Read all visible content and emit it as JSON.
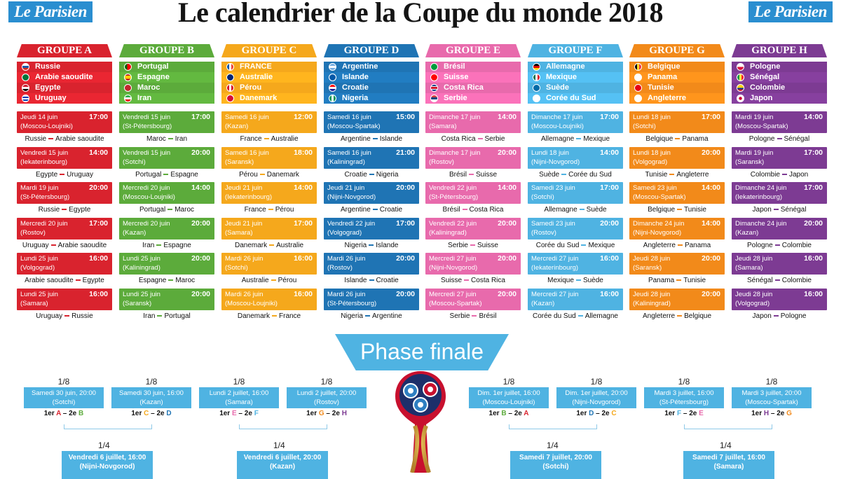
{
  "title": "Le calendrier de la Coupe du monde 2018",
  "logo_text": "Le Parisien",
  "colors": {
    "A": "#d9232e",
    "B": "#5cab3b",
    "C": "#f5a81c",
    "D": "#1f74b4",
    "E": "#e86aac",
    "F": "#4fb3e2",
    "G": "#f28a1a",
    "H": "#7d3b93",
    "logo": "#2a8ed0",
    "final": "#4fb3e2"
  },
  "groups": [
    {
      "name": "GROUPE A",
      "key": "A",
      "teams": [
        {
          "name": "Russie",
          "flag": "russia-flag-icon"
        },
        {
          "name": "Arabie saoudite",
          "flag": "saudi-arabia-flag-icon"
        },
        {
          "name": "Egypte",
          "flag": "egypt-flag-icon"
        },
        {
          "name": "Uruguay",
          "flag": "uruguay-flag-icon"
        }
      ],
      "matches": [
        {
          "date": "Jeudi 14 juin",
          "time": "17:00",
          "city": "(Moscou-Loujniki)",
          "teams": [
            "Russie",
            "Arabie saoudite"
          ]
        },
        {
          "date": "Vendredi 15 juin",
          "time": "14:00",
          "city": "(Iekaterinbourg)",
          "teams": [
            "Egypte",
            "Uruguay"
          ]
        },
        {
          "date": "Mardi 19 juin",
          "time": "20:00",
          "city": "(St-Pétersbourg)",
          "teams": [
            "Russie",
            "Egypte"
          ]
        },
        {
          "date": "Mercredi 20 juin",
          "time": "17:00",
          "city": "(Rostov)",
          "teams": [
            "Uruguay",
            "Arabie saoudite"
          ]
        },
        {
          "date": "Lundi 25 juin",
          "time": "16:00",
          "city": "(Volgograd)",
          "teams": [
            "Arabie saoudite",
            "Egypte"
          ]
        },
        {
          "date": "Lundi 25 juin",
          "time": "16:00",
          "city": "(Samara)",
          "teams": [
            "Uruguay",
            "Russie"
          ]
        }
      ]
    },
    {
      "name": "GROUPE B",
      "key": "B",
      "teams": [
        {
          "name": "Portugal",
          "flag": "portugal-flag-icon"
        },
        {
          "name": "Espagne",
          "flag": "spain-flag-icon"
        },
        {
          "name": "Maroc",
          "flag": "morocco-flag-icon"
        },
        {
          "name": "Iran",
          "flag": "iran-flag-icon"
        }
      ],
      "matches": [
        {
          "date": "Vendredi 15 juin",
          "time": "17:00",
          "city": "(St-Pétersbourg)",
          "teams": [
            "Maroc",
            "Iran"
          ]
        },
        {
          "date": "Vendredi 15 juin",
          "time": "20:00",
          "city": "(Sotchi)",
          "teams": [
            "Portugal",
            "Espagne"
          ]
        },
        {
          "date": "Mercredi 20 juin",
          "time": "14:00",
          "city": "(Moscou-Loujniki)",
          "teams": [
            "Portugal",
            "Maroc"
          ]
        },
        {
          "date": "Mercredi 20 juin",
          "time": "20:00",
          "city": "(Kazan)",
          "teams": [
            "Iran",
            "Espagne"
          ]
        },
        {
          "date": "Lundi 25 juin",
          "time": "20:00",
          "city": "(Kaliningrad)",
          "teams": [
            "Espagne",
            "Maroc"
          ]
        },
        {
          "date": "Lundi 25 juin",
          "time": "20:00",
          "city": "(Saransk)",
          "teams": [
            "Iran",
            "Portugal"
          ]
        }
      ]
    },
    {
      "name": "GROUPE C",
      "key": "C",
      "teams": [
        {
          "name": "FRANCE",
          "flag": "france-flag-icon"
        },
        {
          "name": "Australie",
          "flag": "australia-flag-icon"
        },
        {
          "name": "Pérou",
          "flag": "peru-flag-icon"
        },
        {
          "name": "Danemark",
          "flag": "denmark-flag-icon"
        }
      ],
      "matches": [
        {
          "date": "Samedi 16 juin",
          "time": "12:00",
          "city": "(Kazan)",
          "teams": [
            "France",
            "Australie"
          ]
        },
        {
          "date": "Samedi 16 juin",
          "time": "18:00",
          "city": "(Saransk)",
          "teams": [
            "Pérou",
            "Danemark"
          ]
        },
        {
          "date": "Jeudi 21 juin",
          "time": "14:00",
          "city": "(Iekaterinbourg)",
          "teams": [
            "France",
            "Pérou"
          ]
        },
        {
          "date": "Jeudi 21 juin",
          "time": "17:00",
          "city": "(Samara)",
          "teams": [
            "Danemark",
            "Australie"
          ]
        },
        {
          "date": "Mardi 26 juin",
          "time": "16:00",
          "city": "(Sotchi)",
          "teams": [
            "Australie",
            "Pérou"
          ]
        },
        {
          "date": "Mardi 26 juin",
          "time": "16:00",
          "city": "(Moscou-Loujniki)",
          "teams": [
            "Danemark",
            "France"
          ]
        }
      ]
    },
    {
      "name": "GROUPE D",
      "key": "D",
      "teams": [
        {
          "name": "Argentine",
          "flag": "argentina-flag-icon"
        },
        {
          "name": "Islande",
          "flag": "iceland-flag-icon"
        },
        {
          "name": "Croatie",
          "flag": "croatia-flag-icon"
        },
        {
          "name": "Nigeria",
          "flag": "nigeria-flag-icon"
        }
      ],
      "matches": [
        {
          "date": "Samedi 16 juin",
          "time": "15:00",
          "city": "(Moscou-Spartak)",
          "teams": [
            "Argentine",
            "Islande"
          ]
        },
        {
          "date": "Samedi 16 juin",
          "time": "21:00",
          "city": "(Kaliningrad)",
          "teams": [
            "Croatie",
            "Nigeria"
          ]
        },
        {
          "date": "Jeudi 21 juin",
          "time": "20:00",
          "city": "(Nijni-Novgorod)",
          "teams": [
            "Argentine",
            "Croatie"
          ]
        },
        {
          "date": "Vendredi 22 juin",
          "time": "17:00",
          "city": "(Volgograd)",
          "teams": [
            "Nigeria",
            "Islande"
          ]
        },
        {
          "date": "Mardi 26 juin",
          "time": "20:00",
          "city": "(Rostov)",
          "teams": [
            "Islande",
            "Croatie"
          ]
        },
        {
          "date": "Mardi 26 juin",
          "time": "20:00",
          "city": "(St-Pétersbourg)",
          "teams": [
            "Nigeria",
            "Argentine"
          ]
        }
      ]
    },
    {
      "name": "GROUPE E",
      "key": "E",
      "teams": [
        {
          "name": "Brésil",
          "flag": "brazil-flag-icon"
        },
        {
          "name": "Suisse",
          "flag": "switzerland-flag-icon"
        },
        {
          "name": "Costa Rica",
          "flag": "costa-rica-flag-icon"
        },
        {
          "name": "Serbie",
          "flag": "serbia-flag-icon"
        }
      ],
      "matches": [
        {
          "date": "Dimanche 17 juin",
          "time": "14:00",
          "city": "(Samara)",
          "teams": [
            "Costa Rica",
            "Serbie"
          ]
        },
        {
          "date": "Dimanche 17 juin",
          "time": "20:00",
          "city": "(Rostov)",
          "teams": [
            "Brésil",
            "Suisse"
          ]
        },
        {
          "date": "Vendredi 22 juin",
          "time": "14:00",
          "city": "(St-Pétersbourg)",
          "teams": [
            "Brésil",
            "Costa Rica"
          ]
        },
        {
          "date": "Vendredi 22 juin",
          "time": "20:00",
          "city": "(Kaliningrad)",
          "teams": [
            "Serbie",
            "Suisse"
          ]
        },
        {
          "date": "Mercredi 27 juin",
          "time": "20:00",
          "city": "(Nijni-Novgorod)",
          "teams": [
            "Suisse",
            "Costa Rica"
          ]
        },
        {
          "date": "Mercredi 27 juin",
          "time": "20:00",
          "city": "(Moscou-Spartak)",
          "teams": [
            "Serbie",
            "Brésil"
          ]
        }
      ]
    },
    {
      "name": "GROUPE F",
      "key": "F",
      "teams": [
        {
          "name": "Allemagne",
          "flag": "germany-flag-icon"
        },
        {
          "name": "Mexique",
          "flag": "mexico-flag-icon"
        },
        {
          "name": "Suède",
          "flag": "sweden-flag-icon"
        },
        {
          "name": "Corée du Sud",
          "flag": "south-korea-flag-icon"
        }
      ],
      "matches": [
        {
          "date": "Dimanche 17 juin",
          "time": "17:00",
          "city": "(Moscou-Loujniki)",
          "teams": [
            "Allemagne",
            "Mexique"
          ]
        },
        {
          "date": "Lundi 18 juin",
          "time": "14:00",
          "city": "(Nijni-Novgorod)",
          "teams": [
            "Suède",
            "Corée du Sud"
          ]
        },
        {
          "date": "Samedi 23 juin",
          "time": "17:00",
          "city": "(Sotchi)",
          "teams": [
            "Allemagne",
            "Suède"
          ]
        },
        {
          "date": "Samedi 23 juin",
          "time": "20:00",
          "city": "(Rostov)",
          "teams": [
            "Corée du Sud",
            "Mexique"
          ]
        },
        {
          "date": "Mercredi 27 juin",
          "time": "16:00",
          "city": "(Iekaterinbourg)",
          "teams": [
            "Mexique",
            "Suède"
          ]
        },
        {
          "date": "Mercredi 27 juin",
          "time": "16:00",
          "city": "(Kazan)",
          "teams": [
            "Corée du Sud",
            "Allemagne"
          ]
        }
      ]
    },
    {
      "name": "GROUPE G",
      "key": "G",
      "teams": [
        {
          "name": "Belgique",
          "flag": "belgium-flag-icon"
        },
        {
          "name": "Panama",
          "flag": "panama-flag-icon"
        },
        {
          "name": "Tunisie",
          "flag": "tunisia-flag-icon"
        },
        {
          "name": "Angleterre",
          "flag": "england-flag-icon"
        }
      ],
      "matches": [
        {
          "date": "Lundi 18 juin",
          "time": "17:00",
          "city": "(Sotchi)",
          "teams": [
            "Belgique",
            "Panama"
          ]
        },
        {
          "date": "Lundi 18 juin",
          "time": "20:00",
          "city": "(Volgograd)",
          "teams": [
            "Tunisie",
            "Angleterre"
          ]
        },
        {
          "date": "Samedi 23 juin",
          "time": "14:00",
          "city": "(Moscou-Spartak)",
          "teams": [
            "Belgique",
            "Tunisie"
          ]
        },
        {
          "date": "Dimanche 24 juin",
          "time": "14:00",
          "city": "(Nijni-Novgorod)",
          "teams": [
            "Angleterre",
            "Panama"
          ]
        },
        {
          "date": "Jeudi 28 juin",
          "time": "20:00",
          "city": "(Saransk)",
          "teams": [
            "Panama",
            "Tunisie"
          ]
        },
        {
          "date": "Jeudi 28 juin",
          "time": "20:00",
          "city": "(Kaliningrad)",
          "teams": [
            "Angleterre",
            "Belgique"
          ]
        }
      ]
    },
    {
      "name": "GROUPE H",
      "key": "H",
      "teams": [
        {
          "name": "Pologne",
          "flag": "poland-flag-icon"
        },
        {
          "name": "Sénégal",
          "flag": "senegal-flag-icon"
        },
        {
          "name": "Colombie",
          "flag": "colombia-flag-icon"
        },
        {
          "name": "Japon",
          "flag": "japan-flag-icon"
        }
      ],
      "matches": [
        {
          "date": "Mardi 19 juin",
          "time": "14:00",
          "city": "(Moscou-Spartak)",
          "teams": [
            "Pologne",
            "Sénégal"
          ]
        },
        {
          "date": "Mardi 19 juin",
          "time": "17:00",
          "city": "(Saransk)",
          "teams": [
            "Colombie",
            "Japon"
          ]
        },
        {
          "date": "Dimanche 24 juin",
          "time": "17:00",
          "city": "(Iekaterinbourg)",
          "teams": [
            "Japon",
            "Sénégal"
          ]
        },
        {
          "date": "Dimanche 24 juin",
          "time": "20:00",
          "city": "(Kazan)",
          "teams": [
            "Pologne",
            "Colombie"
          ]
        },
        {
          "date": "Jeudi 28 juin",
          "time": "16:00",
          "city": "(Samara)",
          "teams": [
            "Sénégal",
            "Colombie"
          ]
        },
        {
          "date": "Jeudi 28 juin",
          "time": "16:00",
          "city": "(Volgograd)",
          "teams": [
            "Japon",
            "Pologne"
          ]
        }
      ]
    }
  ],
  "phase_finale": {
    "title": "Phase finale",
    "round16_label": "1/8",
    "quarter_label": "1/4",
    "round16": [
      {
        "date": "Samedi 30 juin, 20:00",
        "city": "(Sotchi)",
        "pair": [
          {
            "pos": "1er",
            "g": "A"
          },
          {
            "pos": "2e",
            "g": "B"
          }
        ]
      },
      {
        "date": "Samedi 30 juin, 16:00",
        "city": "(Kazan)",
        "pair": [
          {
            "pos": "1er",
            "g": "C"
          },
          {
            "pos": "2e",
            "g": "D"
          }
        ]
      },
      {
        "date": "Lundi 2 juillet, 16:00",
        "city": "(Samara)",
        "pair": [
          {
            "pos": "1er",
            "g": "E"
          },
          {
            "pos": "2e",
            "g": "F"
          }
        ]
      },
      {
        "date": "Lundi 2 juillet, 20:00",
        "city": "(Rostov)",
        "pair": [
          {
            "pos": "1er",
            "g": "G"
          },
          {
            "pos": "2e",
            "g": "H"
          }
        ]
      },
      {
        "date": "Dim. 1er juillet, 16:00",
        "city": "(Moscou-Loujniki)",
        "pair": [
          {
            "pos": "1er",
            "g": "B"
          },
          {
            "pos": "2e",
            "g": "A"
          }
        ]
      },
      {
        "date": "Dim. 1er juillet, 20:00",
        "city": "(Nijni-Novgorod)",
        "pair": [
          {
            "pos": "1er",
            "g": "D"
          },
          {
            "pos": "2e",
            "g": "C"
          }
        ]
      },
      {
        "date": "Mardi 3 juillet, 16:00",
        "city": "(St-Pétersbourg)",
        "pair": [
          {
            "pos": "1er",
            "g": "F"
          },
          {
            "pos": "2e",
            "g": "E"
          }
        ]
      },
      {
        "date": "Mardi 3 juillet, 20:00",
        "city": "(Moscou-Spartak)",
        "pair": [
          {
            "pos": "1er",
            "g": "H"
          },
          {
            "pos": "2e",
            "g": "G"
          }
        ]
      }
    ],
    "quarters": [
      {
        "date": "Vendredi 6 juillet, 16:00",
        "city": "(Nijni-Novgorod)"
      },
      {
        "date": "Vendredi 6 juillet, 20:00",
        "city": "(Kazan)"
      },
      {
        "date": "Samedi 7 juillet, 20:00",
        "city": "(Sotchi)"
      },
      {
        "date": "Samedi 7 juillet, 16:00",
        "city": "(Samara)"
      }
    ]
  }
}
